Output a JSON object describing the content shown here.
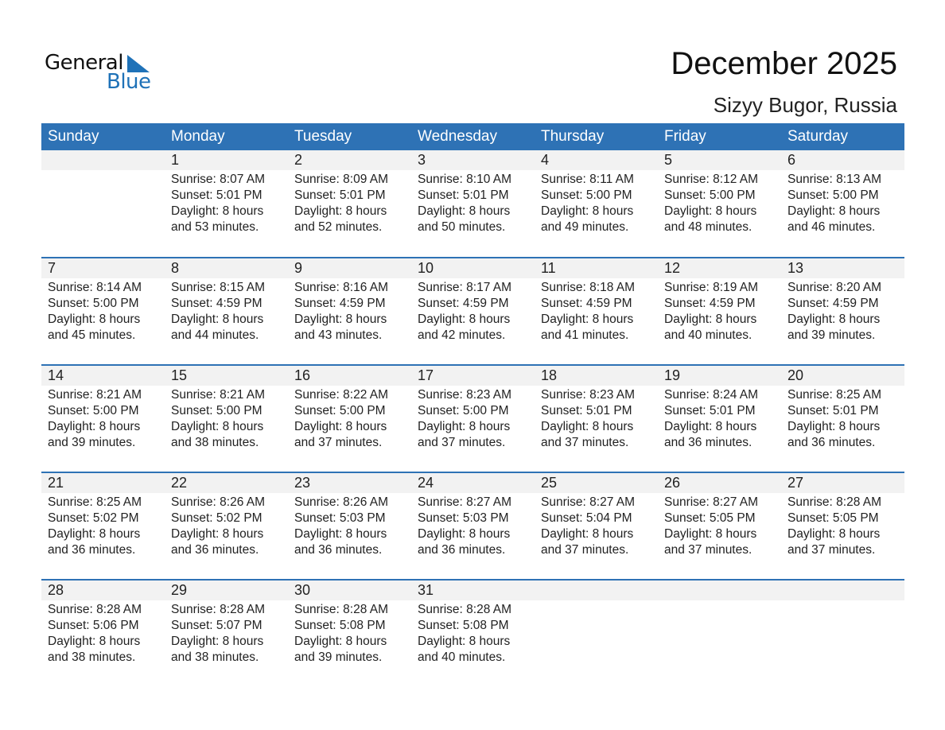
{
  "logo": {
    "text_general": "General",
    "text_blue": "Blue",
    "color": "#1f72b8"
  },
  "title": "December 2025",
  "location": "Sizyy Bugor, Russia",
  "header_color": "#2e72b5",
  "weekdays": [
    "Sunday",
    "Monday",
    "Tuesday",
    "Wednesday",
    "Thursday",
    "Friday",
    "Saturday"
  ],
  "weeks": [
    [
      null,
      {
        "day": "1",
        "sunrise": "Sunrise: 8:07 AM",
        "sunset": "Sunset: 5:01 PM",
        "daylight1": "Daylight: 8 hours",
        "daylight2": "and 53 minutes."
      },
      {
        "day": "2",
        "sunrise": "Sunrise: 8:09 AM",
        "sunset": "Sunset: 5:01 PM",
        "daylight1": "Daylight: 8 hours",
        "daylight2": "and 52 minutes."
      },
      {
        "day": "3",
        "sunrise": "Sunrise: 8:10 AM",
        "sunset": "Sunset: 5:01 PM",
        "daylight1": "Daylight: 8 hours",
        "daylight2": "and 50 minutes."
      },
      {
        "day": "4",
        "sunrise": "Sunrise: 8:11 AM",
        "sunset": "Sunset: 5:00 PM",
        "daylight1": "Daylight: 8 hours",
        "daylight2": "and 49 minutes."
      },
      {
        "day": "5",
        "sunrise": "Sunrise: 8:12 AM",
        "sunset": "Sunset: 5:00 PM",
        "daylight1": "Daylight: 8 hours",
        "daylight2": "and 48 minutes."
      },
      {
        "day": "6",
        "sunrise": "Sunrise: 8:13 AM",
        "sunset": "Sunset: 5:00 PM",
        "daylight1": "Daylight: 8 hours",
        "daylight2": "and 46 minutes."
      }
    ],
    [
      {
        "day": "7",
        "sunrise": "Sunrise: 8:14 AM",
        "sunset": "Sunset: 5:00 PM",
        "daylight1": "Daylight: 8 hours",
        "daylight2": "and 45 minutes."
      },
      {
        "day": "8",
        "sunrise": "Sunrise: 8:15 AM",
        "sunset": "Sunset: 4:59 PM",
        "daylight1": "Daylight: 8 hours",
        "daylight2": "and 44 minutes."
      },
      {
        "day": "9",
        "sunrise": "Sunrise: 8:16 AM",
        "sunset": "Sunset: 4:59 PM",
        "daylight1": "Daylight: 8 hours",
        "daylight2": "and 43 minutes."
      },
      {
        "day": "10",
        "sunrise": "Sunrise: 8:17 AM",
        "sunset": "Sunset: 4:59 PM",
        "daylight1": "Daylight: 8 hours",
        "daylight2": "and 42 minutes."
      },
      {
        "day": "11",
        "sunrise": "Sunrise: 8:18 AM",
        "sunset": "Sunset: 4:59 PM",
        "daylight1": "Daylight: 8 hours",
        "daylight2": "and 41 minutes."
      },
      {
        "day": "12",
        "sunrise": "Sunrise: 8:19 AM",
        "sunset": "Sunset: 4:59 PM",
        "daylight1": "Daylight: 8 hours",
        "daylight2": "and 40 minutes."
      },
      {
        "day": "13",
        "sunrise": "Sunrise: 8:20 AM",
        "sunset": "Sunset: 4:59 PM",
        "daylight1": "Daylight: 8 hours",
        "daylight2": "and 39 minutes."
      }
    ],
    [
      {
        "day": "14",
        "sunrise": "Sunrise: 8:21 AM",
        "sunset": "Sunset: 5:00 PM",
        "daylight1": "Daylight: 8 hours",
        "daylight2": "and 39 minutes."
      },
      {
        "day": "15",
        "sunrise": "Sunrise: 8:21 AM",
        "sunset": "Sunset: 5:00 PM",
        "daylight1": "Daylight: 8 hours",
        "daylight2": "and 38 minutes."
      },
      {
        "day": "16",
        "sunrise": "Sunrise: 8:22 AM",
        "sunset": "Sunset: 5:00 PM",
        "daylight1": "Daylight: 8 hours",
        "daylight2": "and 37 minutes."
      },
      {
        "day": "17",
        "sunrise": "Sunrise: 8:23 AM",
        "sunset": "Sunset: 5:00 PM",
        "daylight1": "Daylight: 8 hours",
        "daylight2": "and 37 minutes."
      },
      {
        "day": "18",
        "sunrise": "Sunrise: 8:23 AM",
        "sunset": "Sunset: 5:01 PM",
        "daylight1": "Daylight: 8 hours",
        "daylight2": "and 37 minutes."
      },
      {
        "day": "19",
        "sunrise": "Sunrise: 8:24 AM",
        "sunset": "Sunset: 5:01 PM",
        "daylight1": "Daylight: 8 hours",
        "daylight2": "and 36 minutes."
      },
      {
        "day": "20",
        "sunrise": "Sunrise: 8:25 AM",
        "sunset": "Sunset: 5:01 PM",
        "daylight1": "Daylight: 8 hours",
        "daylight2": "and 36 minutes."
      }
    ],
    [
      {
        "day": "21",
        "sunrise": "Sunrise: 8:25 AM",
        "sunset": "Sunset: 5:02 PM",
        "daylight1": "Daylight: 8 hours",
        "daylight2": "and 36 minutes."
      },
      {
        "day": "22",
        "sunrise": "Sunrise: 8:26 AM",
        "sunset": "Sunset: 5:02 PM",
        "daylight1": "Daylight: 8 hours",
        "daylight2": "and 36 minutes."
      },
      {
        "day": "23",
        "sunrise": "Sunrise: 8:26 AM",
        "sunset": "Sunset: 5:03 PM",
        "daylight1": "Daylight: 8 hours",
        "daylight2": "and 36 minutes."
      },
      {
        "day": "24",
        "sunrise": "Sunrise: 8:27 AM",
        "sunset": "Sunset: 5:03 PM",
        "daylight1": "Daylight: 8 hours",
        "daylight2": "and 36 minutes."
      },
      {
        "day": "25",
        "sunrise": "Sunrise: 8:27 AM",
        "sunset": "Sunset: 5:04 PM",
        "daylight1": "Daylight: 8 hours",
        "daylight2": "and 37 minutes."
      },
      {
        "day": "26",
        "sunrise": "Sunrise: 8:27 AM",
        "sunset": "Sunset: 5:05 PM",
        "daylight1": "Daylight: 8 hours",
        "daylight2": "and 37 minutes."
      },
      {
        "day": "27",
        "sunrise": "Sunrise: 8:28 AM",
        "sunset": "Sunset: 5:05 PM",
        "daylight1": "Daylight: 8 hours",
        "daylight2": "and 37 minutes."
      }
    ],
    [
      {
        "day": "28",
        "sunrise": "Sunrise: 8:28 AM",
        "sunset": "Sunset: 5:06 PM",
        "daylight1": "Daylight: 8 hours",
        "daylight2": "and 38 minutes."
      },
      {
        "day": "29",
        "sunrise": "Sunrise: 8:28 AM",
        "sunset": "Sunset: 5:07 PM",
        "daylight1": "Daylight: 8 hours",
        "daylight2": "and 38 minutes."
      },
      {
        "day": "30",
        "sunrise": "Sunrise: 8:28 AM",
        "sunset": "Sunset: 5:08 PM",
        "daylight1": "Daylight: 8 hours",
        "daylight2": "and 39 minutes."
      },
      {
        "day": "31",
        "sunrise": "Sunrise: 8:28 AM",
        "sunset": "Sunset: 5:08 PM",
        "daylight1": "Daylight: 8 hours",
        "daylight2": "and 40 minutes."
      },
      null,
      null,
      null
    ]
  ]
}
